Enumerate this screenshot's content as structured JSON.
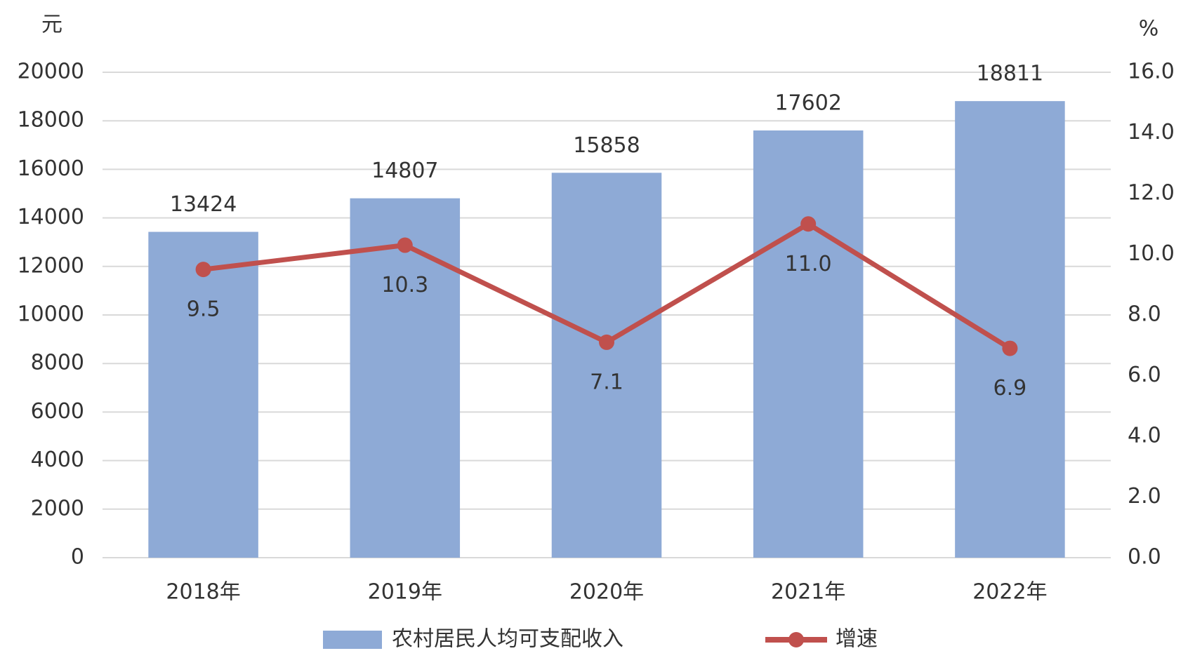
{
  "chart_data": {
    "type": "bar-line",
    "y_label": "元",
    "y2_label": "%",
    "categories": [
      "2018年",
      "2019年",
      "2020年",
      "2021年",
      "2022年"
    ],
    "series": [
      {
        "name": "农村居民人均可支配收入",
        "type": "bar",
        "color": "#8eaad6",
        "values": [
          13424,
          14807,
          15858,
          17602,
          18811
        ]
      },
      {
        "name": "增速",
        "type": "line",
        "axis": "y2",
        "color": "#c0504d",
        "values": [
          9.5,
          10.3,
          7.1,
          11.0,
          6.9
        ],
        "value_labels": [
          "9.5",
          "10.3",
          "7.1",
          "11.0",
          "6.9"
        ]
      }
    ],
    "ylim": [
      0,
      20000
    ],
    "yticks": [
      0,
      2000,
      4000,
      6000,
      8000,
      10000,
      12000,
      14000,
      16000,
      18000,
      20000
    ],
    "y2lim": [
      0,
      16
    ],
    "y2ticks": [
      {
        "value": 0,
        "label": "0.0"
      },
      {
        "value": 2,
        "label": "2.0"
      },
      {
        "value": 4,
        "label": "4.0"
      },
      {
        "value": 6,
        "label": "6.0"
      },
      {
        "value": 8,
        "label": "8.0"
      },
      {
        "value": 10,
        "label": "10.0"
      },
      {
        "value": 12,
        "label": "12.0"
      },
      {
        "value": 14,
        "label": "14.0"
      },
      {
        "value": 16,
        "label": "16.0"
      }
    ],
    "grid": true,
    "legend": "bottom"
  }
}
